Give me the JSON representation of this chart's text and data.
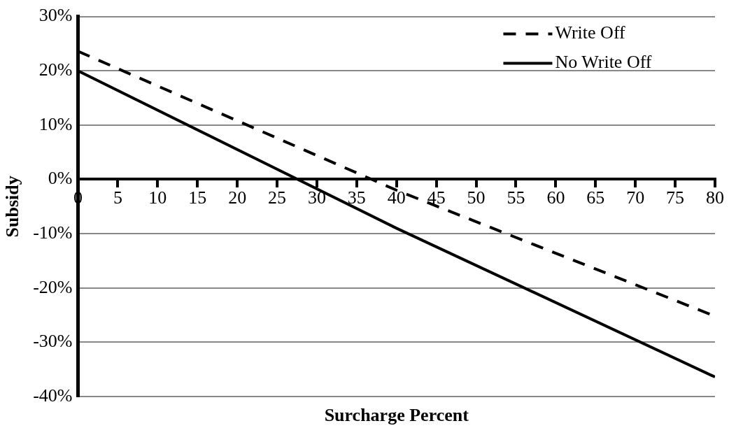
{
  "chart_data": {
    "type": "line",
    "xlabel": "Surcharge Percent",
    "ylabel": "Subsidy",
    "xlim": [
      0,
      80
    ],
    "xticks": [
      0,
      5,
      10,
      15,
      20,
      25,
      30,
      35,
      40,
      45,
      50,
      55,
      60,
      65,
      70,
      75,
      80
    ],
    "ylim": [
      -40,
      30
    ],
    "yticks": [
      {
        "value": -40,
        "label": "-40%"
      },
      {
        "value": -30,
        "label": "-30%"
      },
      {
        "value": -20,
        "label": "-20%"
      },
      {
        "value": -10,
        "label": "-10%"
      },
      {
        "value": 0,
        "label": "0%"
      },
      {
        "value": 10,
        "label": "10%"
      },
      {
        "value": 20,
        "label": "20%"
      },
      {
        "value": 30,
        "label": "30%"
      }
    ],
    "grid": "y",
    "legend": "top right",
    "marker": "none",
    "series": [
      {
        "name": "Write Off",
        "color": "#000000",
        "line_style": "dashed",
        "x": [
          0,
          40,
          80
        ],
        "values": [
          23.6,
          -2,
          -25.2
        ]
      },
      {
        "name": "No Write Off",
        "color": "#000000",
        "line_style": "solid",
        "x": [
          0,
          40,
          80
        ],
        "values": [
          20,
          -9,
          -36.4
        ]
      }
    ]
  }
}
